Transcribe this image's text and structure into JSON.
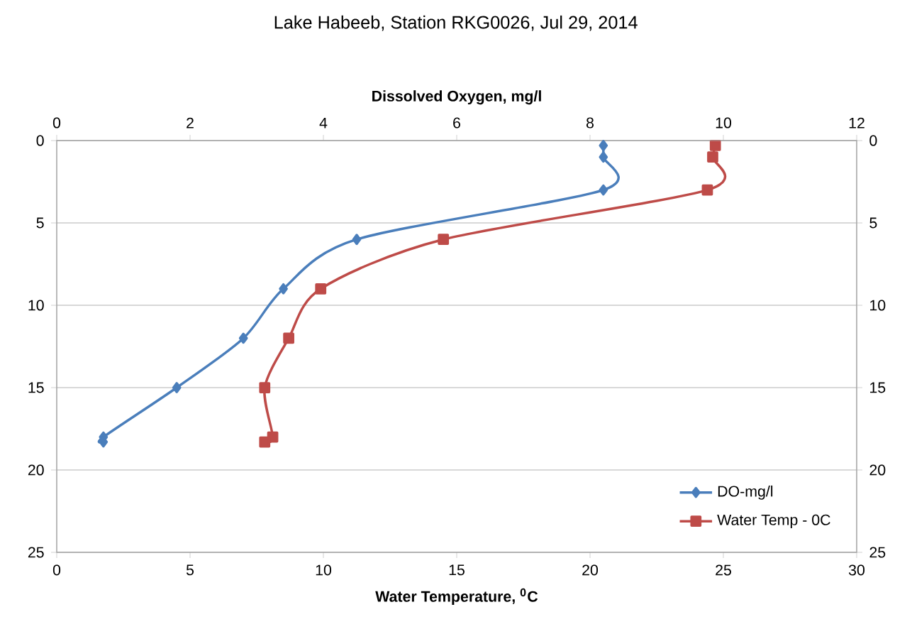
{
  "chart_data": {
    "type": "line",
    "title": "Lake Habeeb, Station RKG0026, Jul 29, 2014",
    "xlabel": "Water Temperature, $^{0}$C",
    "x2label": "Dissolved Oxygen, mg/l",
    "xlim": [
      0,
      30
    ],
    "xticks": [
      0,
      5,
      10,
      15,
      20,
      25,
      30
    ],
    "x2lim": [
      0,
      12
    ],
    "x2ticks": [
      0,
      2,
      4,
      6,
      8,
      10,
      12
    ],
    "ylim": [
      25,
      0
    ],
    "yticks": [
      0,
      5,
      10,
      15,
      20,
      25
    ],
    "y2lim": [
      25,
      0
    ],
    "y2ticks": [
      0,
      5,
      10,
      15,
      20,
      25
    ],
    "grid": "y",
    "legend": "bottom right",
    "line_style": "solid",
    "series": [
      {
        "name": "DO-mg/l",
        "color": "#4a7ebb",
        "axis": "x2",
        "marker": "diamond",
        "x": [
          8.2,
          8.2,
          8.2,
          4.5,
          3.4,
          2.8,
          1.8,
          0.7,
          0.7
        ],
        "values": [
          0.3,
          1,
          3,
          6,
          9,
          12,
          15,
          18,
          18.3
        ]
      },
      {
        "name": "Water Temp - 0C",
        "color": "#be4b48",
        "marker": "square",
        "x": [
          24.7,
          24.6,
          24.4,
          14.5,
          9.9,
          8.7,
          7.8,
          8.1,
          7.8
        ],
        "values": [
          0.3,
          1,
          3,
          6,
          9,
          12,
          15,
          18,
          18.3
        ]
      }
    ]
  }
}
